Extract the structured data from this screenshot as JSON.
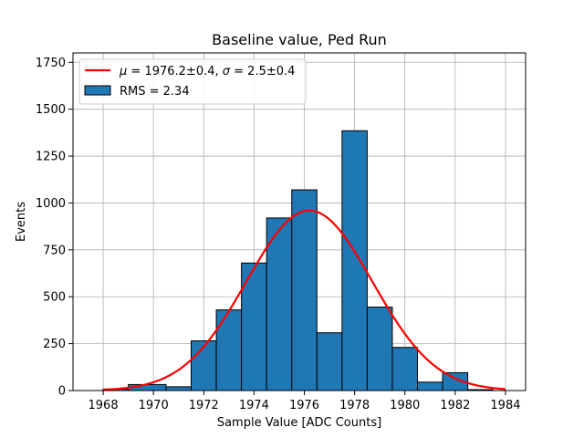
{
  "chart_data": {
    "type": "bar",
    "title": "Baseline value, Ped Run",
    "xlabel": "Sample Value [ADC Counts]",
    "ylabel": "Events",
    "xlim": [
      1966.8,
      1984.8
    ],
    "ylim": [
      0,
      1800
    ],
    "xticks": [
      1968,
      1970,
      1972,
      1974,
      1976,
      1978,
      1980,
      1982,
      1984
    ],
    "yticks": [
      0,
      250,
      500,
      750,
      1000,
      1250,
      1500,
      1750
    ],
    "grid": true,
    "legend_position": "top-left",
    "histogram": {
      "name": "RMS = 2.34",
      "color": "#1f77b4",
      "bin_edges": [
        1968.0,
        1969.0,
        1970.5,
        1971.5,
        1972.5,
        1973.5,
        1974.5,
        1975.5,
        1976.5,
        1977.5,
        1978.5,
        1979.5,
        1980.5,
        1981.5,
        1982.5,
        1983.5
      ],
      "counts": [
        8,
        32,
        20,
        265,
        430,
        680,
        920,
        1070,
        308,
        1385,
        445,
        230,
        45,
        95,
        5
      ]
    },
    "fit": {
      "name_parts": [
        "μ",
        " = 1976.2±0.4, ",
        "σ",
        " = 2.5±0.4"
      ],
      "color": "#ff0000",
      "mean": 1976.2,
      "sigma": 2.5,
      "amplitude": 960,
      "x_range": [
        1968,
        1984
      ]
    }
  }
}
